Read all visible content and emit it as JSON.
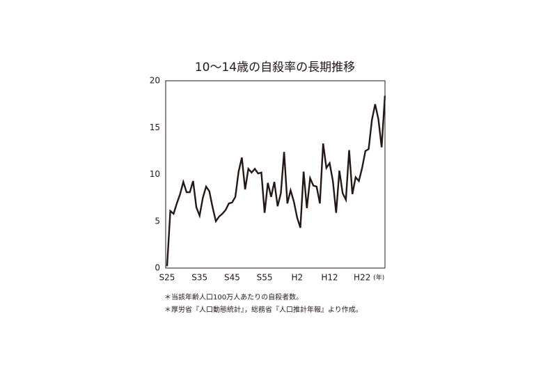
{
  "chart_data": {
    "type": "line",
    "title": "10〜14歳の自殺率の長期推移",
    "categories": [
      "S25",
      null,
      null,
      null,
      null,
      null,
      null,
      null,
      null,
      null,
      "S35",
      null,
      null,
      null,
      null,
      null,
      null,
      null,
      null,
      null,
      "S45",
      null,
      null,
      null,
      null,
      null,
      null,
      null,
      null,
      null,
      "S55",
      null,
      null,
      null,
      null,
      null,
      null,
      null,
      null,
      null,
      "H2",
      null,
      null,
      null,
      null,
      null,
      null,
      null,
      null,
      null,
      "H12",
      null,
      null,
      null,
      null,
      null,
      null,
      null,
      null,
      null,
      "H22",
      null,
      null,
      null,
      null,
      null,
      null,
      null
    ],
    "x_unit": "(年)",
    "series": [
      {
        "color": "#231815",
        "values": [
          0.2,
          6.1,
          5.8,
          6.9,
          7.9,
          9.2,
          8.1,
          8.1,
          9.3,
          6.5,
          5.6,
          7.5,
          8.7,
          8.2,
          6.5,
          5.0,
          5.5,
          5.8,
          6.2,
          6.9,
          7.0,
          7.6,
          10.3,
          11.8,
          8.4,
          10.6,
          10.2,
          10.6,
          10.1,
          10.2,
          5.9,
          9.1,
          7.6,
          9.2,
          6.6,
          8.0,
          12.4,
          6.9,
          8.3,
          7.1,
          5.4,
          4.3,
          10.3,
          6.4,
          9.6,
          8.8,
          8.7,
          6.9,
          13.3,
          10.7,
          11.2,
          9.3,
          5.9,
          10.4,
          8.0,
          7.3,
          12.6,
          7.9,
          9.7,
          9.3,
          10.7,
          12.5,
          12.7,
          15.8,
          17.5,
          15.9,
          12.9,
          18.4
        ]
      }
    ],
    "ylim": [
      0,
      20
    ],
    "yticks": [
      0,
      5,
      10,
      15,
      20
    ],
    "grid": false,
    "notes": [
      "＊当該年齢人口100万人あたりの自殺者数。",
      "＊厚労省『人口動態統計』，総務省『人口推計年報』より作成。"
    ]
  }
}
